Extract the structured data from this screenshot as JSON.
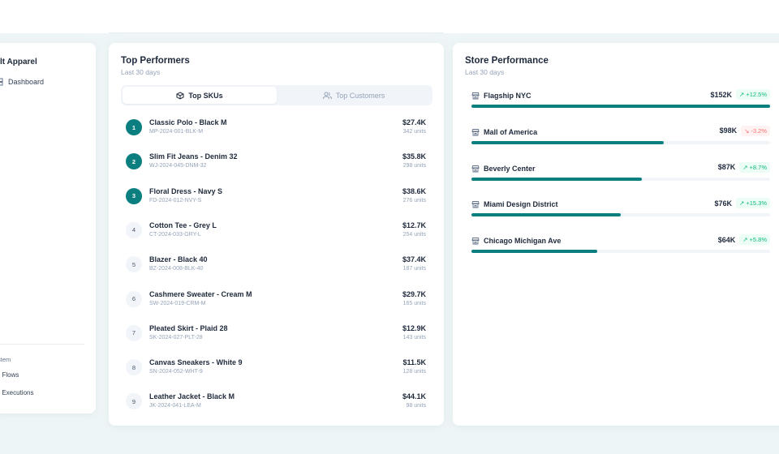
{
  "sidebar": {
    "brand": "lt Apparel",
    "nav": [
      {
        "label": "Dashboard",
        "icon": "dashboard-icon"
      }
    ],
    "section": "stem",
    "system_items": [
      {
        "label": "Flows",
        "icon": "flows-icon"
      },
      {
        "label": "Executions",
        "icon": "executions-icon"
      }
    ]
  },
  "performers": {
    "title": "Top Performers",
    "subtitle": "Last 30 days",
    "tabs": [
      {
        "label": "Top SKUs",
        "icon": "box-icon",
        "active": true
      },
      {
        "label": "Top Customers",
        "icon": "users-icon",
        "active": false
      }
    ],
    "items": [
      {
        "rank": "1",
        "name": "Classic Polo - Black M",
        "sku": "MP-2024-001-BLK-M",
        "revenue": "$27.4K",
        "units": "342 units"
      },
      {
        "rank": "2",
        "name": "Slim Fit Jeans - Denim 32",
        "sku": "WJ-2024-045-DNM-32",
        "revenue": "$35.8K",
        "units": "298 units"
      },
      {
        "rank": "3",
        "name": "Floral Dress - Navy S",
        "sku": "FD-2024-012-NVY-S",
        "revenue": "$38.6K",
        "units": "276 units"
      },
      {
        "rank": "4",
        "name": "Cotton Tee - Grey L",
        "sku": "CT-2024-033-GRY-L",
        "revenue": "$12.7K",
        "units": "254 units"
      },
      {
        "rank": "5",
        "name": "Blazer - Black 40",
        "sku": "BZ-2024-008-BLK-40",
        "revenue": "$37.4K",
        "units": "187 units"
      },
      {
        "rank": "6",
        "name": "Cashmere Sweater - Cream M",
        "sku": "SW-2024-019-CRM-M",
        "revenue": "$29.7K",
        "units": "165 units"
      },
      {
        "rank": "7",
        "name": "Pleated Skirt - Plaid 28",
        "sku": "SK-2024-027-PLT-28",
        "revenue": "$12.9K",
        "units": "143 units"
      },
      {
        "rank": "8",
        "name": "Canvas Sneakers - White 9",
        "sku": "SN-2024-052-WHT-9",
        "revenue": "$11.5K",
        "units": "128 units"
      },
      {
        "rank": "9",
        "name": "Leather Jacket - Black M",
        "sku": "JK-2024-041-LEA-M",
        "revenue": "$44.1K",
        "units": "98 units"
      }
    ]
  },
  "stores": {
    "title": "Store Performance",
    "subtitle": "Last 30 days",
    "items": [
      {
        "name": "Flagship NYC",
        "value": "$152K",
        "change": "+12.5%",
        "trend": "up",
        "share": 100
      },
      {
        "name": "Mall of America",
        "value": "$98K",
        "change": "-3.2%",
        "trend": "down",
        "share": 64.5
      },
      {
        "name": "Beverly Center",
        "value": "$87K",
        "change": "+8.7%",
        "trend": "up",
        "share": 57.2
      },
      {
        "name": "Miami Design District",
        "value": "$76K",
        "change": "+15.3%",
        "trend": "up",
        "share": 50
      },
      {
        "name": "Chicago Michigan Ave",
        "value": "$64K",
        "change": "+5.8%",
        "trend": "up",
        "share": 42.1
      }
    ]
  },
  "colors": {
    "accent": "#0b7f80",
    "up": "#10b981",
    "down": "#f87171"
  }
}
